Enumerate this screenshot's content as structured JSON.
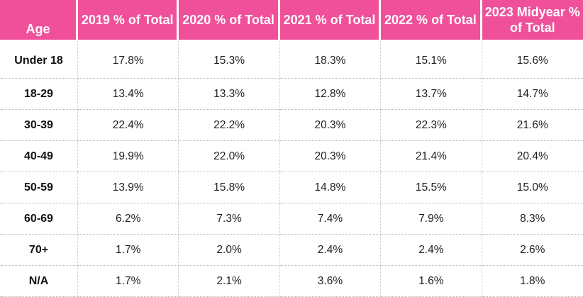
{
  "table": {
    "headers": [
      "Age",
      "2019 % of Total",
      "2020 % of Total",
      "2021 % of Total",
      "2022 % of Total",
      "2023 Midyear % of Total"
    ],
    "rows": [
      {
        "age": "Under 18",
        "values": [
          "17.8%",
          "15.3%",
          "18.3%",
          "15.1%",
          "15.6%"
        ]
      },
      {
        "age": "18-29",
        "values": [
          "13.4%",
          "13.3%",
          "12.8%",
          "13.7%",
          "14.7%"
        ]
      },
      {
        "age": "30-39",
        "values": [
          "22.4%",
          "22.2%",
          "20.3%",
          "22.3%",
          "21.6%"
        ]
      },
      {
        "age": "40-49",
        "values": [
          "19.9%",
          "22.0%",
          "20.3%",
          "21.4%",
          "20.4%"
        ]
      },
      {
        "age": "50-59",
        "values": [
          "13.9%",
          "15.8%",
          "14.8%",
          "15.5%",
          "15.0%"
        ]
      },
      {
        "age": "60-69",
        "values": [
          "6.2%",
          "7.3%",
          "7.4%",
          "7.9%",
          "8.3%"
        ]
      },
      {
        "age": "70+",
        "values": [
          "1.7%",
          "2.0%",
          "2.4%",
          "2.4%",
          "2.6%"
        ]
      },
      {
        "age": "N/A",
        "values": [
          "1.7%",
          "2.1%",
          "3.6%",
          "1.6%",
          "1.8%"
        ]
      }
    ]
  },
  "colors": {
    "header_background": "#f0509a",
    "header_text": "#ffffff"
  }
}
